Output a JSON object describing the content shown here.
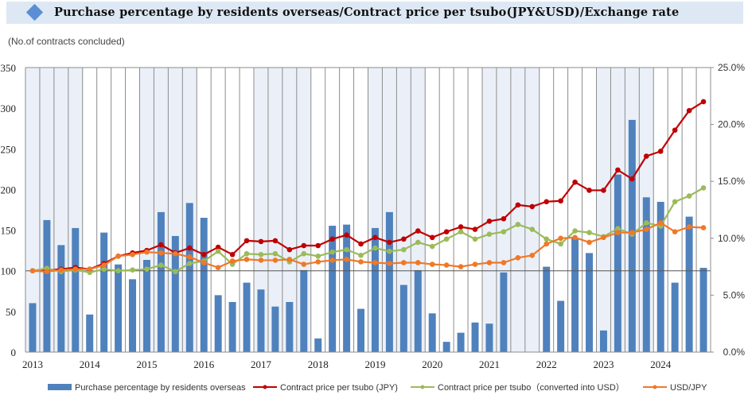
{
  "header": {
    "title": "Purchase percentage by residents overseas/Contract price per tsubo(JPY&USD)/Exchange rate",
    "icon": "diamond-icon",
    "accent_color": "#5b8fd3",
    "background_color": "#dde8f4"
  },
  "unit_label": "(No.of contracts concluded)",
  "chart_data": {
    "type": "bar+line",
    "title": "Purchase percentage by residents overseas/Contract price per tsubo(JPY&USD)/Exchange rate",
    "xlabel": "",
    "ylabel_left": "(No.of contracts concluded)",
    "ylabel_right": "",
    "ylim_left": [
      0,
      350
    ],
    "yticks_left": [
      "0",
      "50",
      "100",
      "150",
      "200",
      "250",
      "300",
      "350"
    ],
    "yticks_left_values": [
      0,
      50,
      100,
      150,
      200,
      250,
      300,
      350
    ],
    "ylim_right": [
      0,
      25
    ],
    "yticks_right": [
      "0.0%",
      "5.0%",
      "10.0%",
      "15.0%",
      "20.0%",
      "25.0%"
    ],
    "yticks_right_values": [
      0,
      5,
      10,
      15,
      20,
      25
    ],
    "reference_line_left": 100,
    "grid": "vertical quarterly gridlines; alternating shaded 2-year bands",
    "x_year_labels": [
      "2013",
      "2014",
      "2015",
      "2016",
      "2017",
      "2018",
      "2019",
      "2020",
      "2021",
      "2022",
      "2023",
      "2024"
    ],
    "quarters_per_year": 4,
    "shaded_years": [
      "2013",
      "2015",
      "2017",
      "2019",
      "2021",
      "2023"
    ],
    "legend_position": "bottom",
    "series": [
      {
        "name": "Purchase percentage by residents overseas",
        "type": "bar",
        "axis": "right",
        "unit": "%",
        "color": "#4f81bd",
        "values": [
          4.3,
          11.6,
          9.4,
          10.9,
          3.3,
          10.5,
          7.7,
          6.4,
          8.1,
          12.3,
          10.2,
          13.1,
          11.8,
          5.0,
          4.4,
          6.1,
          5.5,
          4.0,
          4.4,
          7.2,
          1.2,
          11.1,
          11.2,
          3.8,
          10.9,
          12.3,
          5.9,
          7.2,
          3.4,
          0.9,
          1.7,
          2.6,
          2.5,
          7.0,
          null,
          null,
          7.5,
          4.5,
          10.0,
          8.7,
          1.9,
          15.6,
          20.4,
          13.6,
          13.2,
          6.1,
          11.9,
          7.4
        ]
      },
      {
        "name": "Contract price per tsubo (JPY)",
        "type": "line",
        "axis": "left",
        "color": "#c00000",
        "values": [
          100,
          101,
          102,
          104,
          102,
          109,
          118,
          122,
          125,
          132,
          122,
          128,
          120,
          129,
          120,
          137,
          136,
          137,
          126,
          131,
          131,
          139,
          144,
          133,
          141,
          135,
          139,
          149,
          141,
          148,
          154,
          151,
          161,
          164,
          181,
          179,
          185,
          186,
          209,
          199,
          199,
          224,
          213,
          241,
          247,
          273,
          297,
          308
        ]
      },
      {
        "name": "Contract price per tsubo（converted into USD）",
        "type": "line",
        "axis": "left",
        "color": "#9bbb59",
        "values": [
          100,
          103,
          99,
          101,
          98,
          102,
          100,
          101,
          102,
          107,
          99,
          109,
          112,
          124,
          108,
          121,
          120,
          121,
          111,
          121,
          118,
          123,
          126,
          119,
          128,
          124,
          126,
          135,
          130,
          139,
          148,
          139,
          145,
          148,
          157,
          151,
          139,
          133,
          149,
          147,
          142,
          152,
          145,
          159,
          155,
          185,
          192,
          202
        ]
      },
      {
        "name": "USD/JPY",
        "type": "line",
        "axis": "left",
        "color": "#f07828",
        "values": [
          100,
          99,
          101,
          102,
          102,
          107,
          118,
          120,
          123,
          122,
          121,
          117,
          110,
          104,
          112,
          114,
          113,
          113,
          114,
          108,
          111,
          113,
          114,
          111,
          110,
          109,
          110,
          110,
          108,
          107,
          105,
          108,
          110,
          110,
          116,
          119,
          133,
          140,
          141,
          135,
          141,
          147,
          147,
          151,
          159,
          148,
          154,
          153
        ]
      }
    ]
  }
}
